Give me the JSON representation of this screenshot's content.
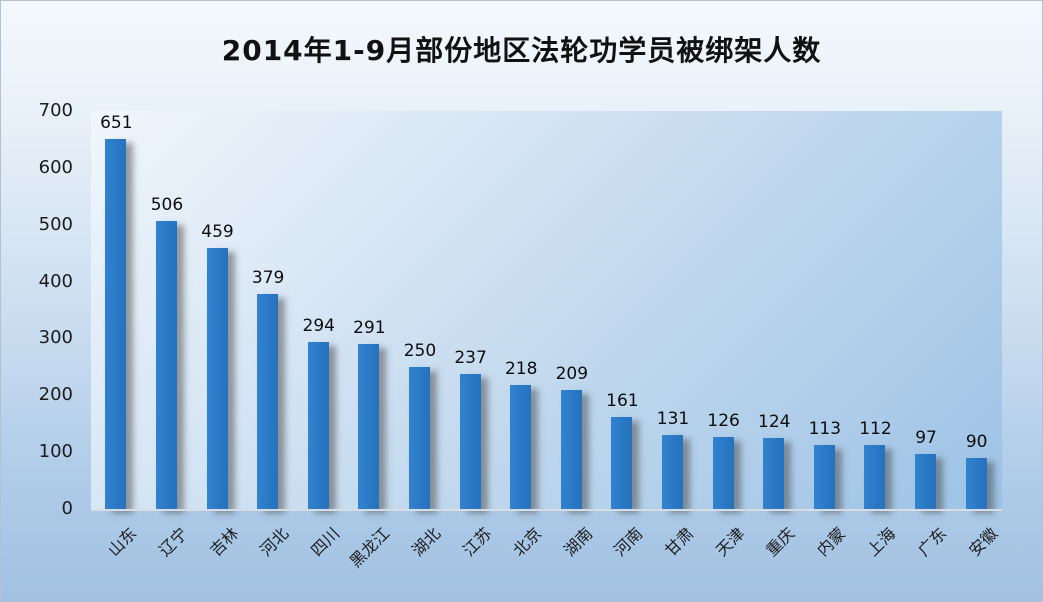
{
  "chart_data": {
    "type": "bar",
    "title": "2014年1-9月部份地区法轮功学员被绑架人数",
    "categories": [
      "山东",
      "辽宁",
      "吉林",
      "河北",
      "四川",
      "黑龙江",
      "湖北",
      "江苏",
      "北京",
      "湖南",
      "河南",
      "甘肃",
      "天津",
      "重庆",
      "内蒙",
      "上海",
      "广东",
      "安徽"
    ],
    "values": [
      651,
      506,
      459,
      379,
      294,
      291,
      250,
      237,
      218,
      209,
      161,
      131,
      126,
      124,
      113,
      112,
      97,
      90
    ],
    "xlabel": "",
    "ylabel": "",
    "ylim": [
      0,
      700
    ],
    "yticks": [
      0,
      100,
      200,
      300,
      400,
      500,
      600,
      700
    ],
    "grid": false,
    "legend": null,
    "x_tick_rotation_deg": 45,
    "colors": {
      "bar": "#2572bd",
      "bar_light": "#3282cf",
      "background_top": "#f4f8fc",
      "background_bottom": "#a2c2e2",
      "plot_light": "#f0f6fc",
      "plot_dark": "#9dc3e6",
      "text": "#111111"
    }
  }
}
